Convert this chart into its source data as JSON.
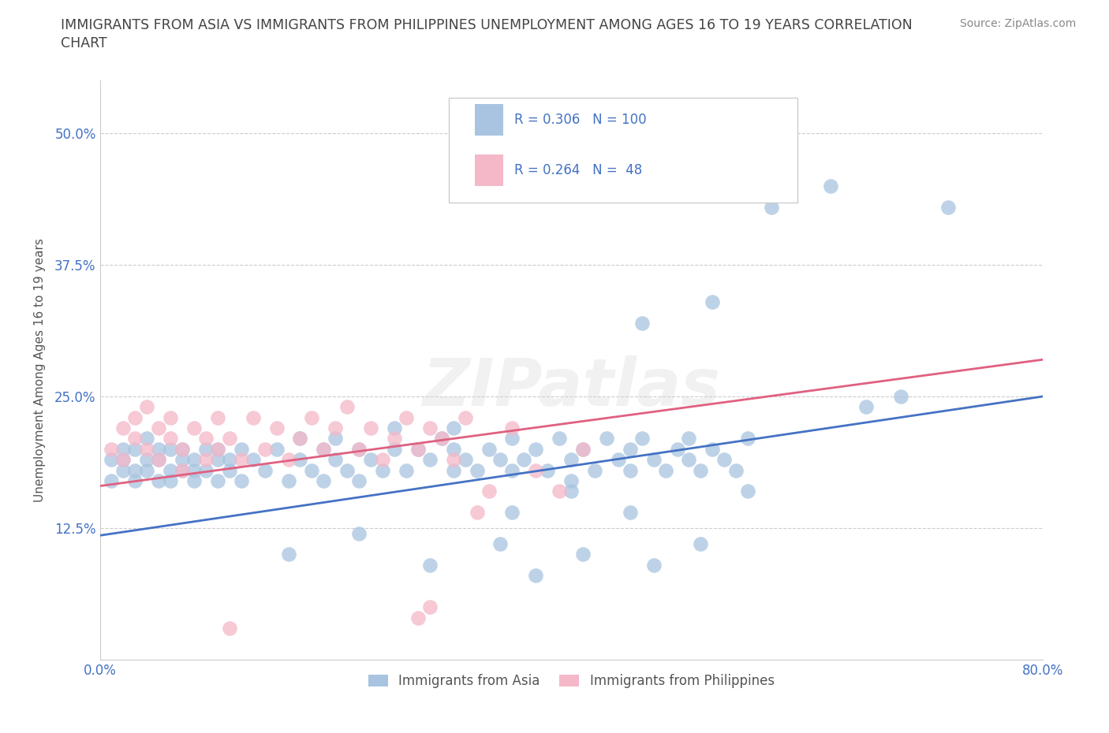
{
  "title_line1": "IMMIGRANTS FROM ASIA VS IMMIGRANTS FROM PHILIPPINES UNEMPLOYMENT AMONG AGES 16 TO 19 YEARS CORRELATION",
  "title_line2": "CHART",
  "source": "Source: ZipAtlas.com",
  "ylabel": "Unemployment Among Ages 16 to 19 years",
  "xlim": [
    0.0,
    0.8
  ],
  "ylim": [
    0.0,
    0.55
  ],
  "xticks": [
    0.0,
    0.1,
    0.2,
    0.3,
    0.4,
    0.5,
    0.6,
    0.7,
    0.8
  ],
  "xticklabels": [
    "0.0%",
    "",
    "",
    "",
    "",
    "",
    "",
    "",
    "80.0%"
  ],
  "yticks": [
    0.0,
    0.125,
    0.25,
    0.375,
    0.5
  ],
  "yticklabels": [
    "",
    "12.5%",
    "25.0%",
    "37.5%",
    "50.0%"
  ],
  "grid_color": "#cccccc",
  "asia_color": "#a8c4e0",
  "asia_line_color": "#4472c4",
  "phil_color": "#f4b8c8",
  "phil_line_color": "#e06080",
  "title_color": "#444444",
  "source_color": "#888888",
  "tick_color_x": "#4472c4",
  "tick_color_y": "#4472c4",
  "legend_text_color": "#4472c4",
  "bottom_legend_asia": "Immigrants from Asia",
  "bottom_legend_phil": "Immigrants from Philippines",
  "asia_line_x0": 0.0,
  "asia_line_y0": 0.118,
  "asia_line_x1": 0.8,
  "asia_line_y1": 0.25,
  "phil_line_x0": 0.0,
  "phil_line_y0": 0.165,
  "phil_line_x1": 0.8,
  "phil_line_y1": 0.285
}
